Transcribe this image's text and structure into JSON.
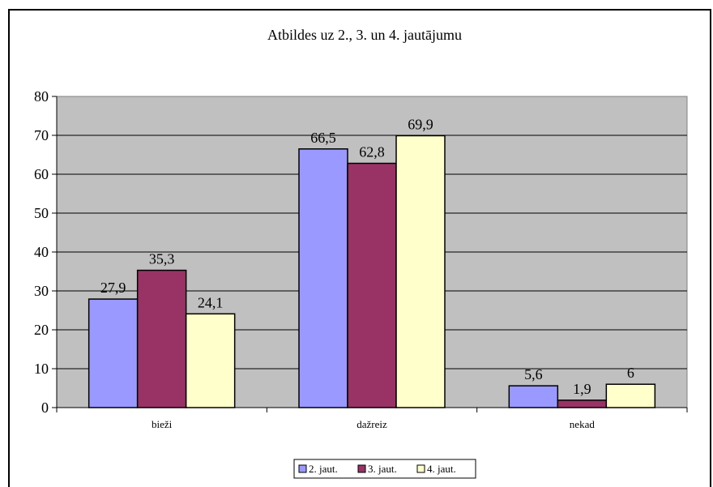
{
  "chart_data": {
    "type": "bar",
    "title": "Atbildes uz 2., 3. un 4. jautājumu",
    "categories": [
      "bieži",
      "dažreiz",
      "nekad"
    ],
    "series": [
      {
        "name": "2. jaut.",
        "color": "#9999ff",
        "values": [
          27.9,
          66.5,
          5.6
        ],
        "labels": [
          "27,9",
          "66,5",
          "5,6"
        ]
      },
      {
        "name": "3. jaut.",
        "color": "#993366",
        "values": [
          35.3,
          62.8,
          1.9
        ],
        "labels": [
          "35,3",
          "62,8",
          "1,9"
        ]
      },
      {
        "name": "4. jaut.",
        "color": "#ffffcc",
        "values": [
          24.1,
          69.9,
          6
        ],
        "labels": [
          "24,1",
          "69,9",
          "6"
        ]
      }
    ],
    "ylim": [
      0,
      80
    ],
    "yticks": [
      0,
      10,
      20,
      30,
      40,
      50,
      60,
      70,
      80
    ],
    "plot_background": "#c0c0c0",
    "grid": true,
    "legend_position": "bottom"
  }
}
